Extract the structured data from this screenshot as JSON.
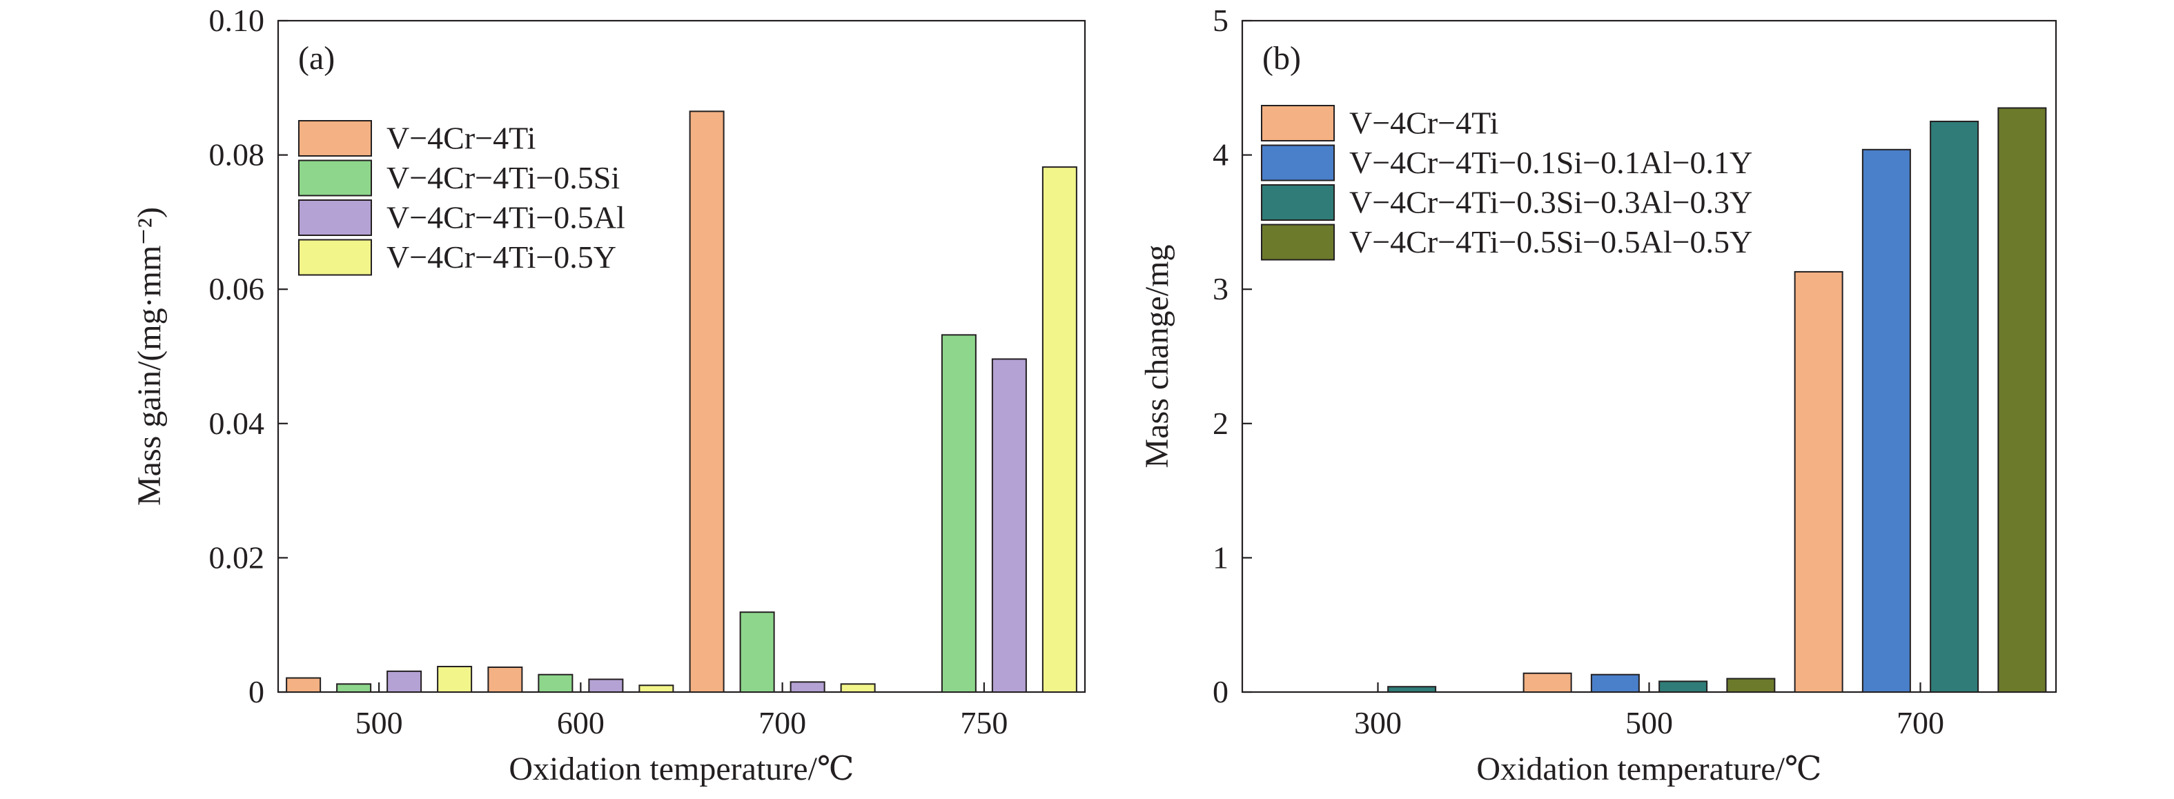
{
  "chart_data": [
    {
      "type": "bar",
      "panel_label": "(a)",
      "xlabel": "Oxidation temperature/℃",
      "ylabel": "Mass gain/(mg·mm⁻²)",
      "ylim": [
        0,
        0.1
      ],
      "yticks": [
        "0",
        "0.02",
        "0.04",
        "0.06",
        "0.08",
        "0.10"
      ],
      "categories": [
        "500",
        "600",
        "700",
        "750"
      ],
      "grid": false,
      "legend_position": "top-left",
      "series": [
        {
          "name": "V−4Cr−4Ti",
          "color": "#f4b183",
          "values": [
            0.0021,
            0.0037,
            0.0865,
            null
          ]
        },
        {
          "name": "V−4Cr−4Ti−0.5Si",
          "color": "#8ed68c",
          "values": [
            0.0012,
            0.0026,
            0.0119,
            0.0532
          ]
        },
        {
          "name": "V−4Cr−4Ti−0.5Al",
          "color": "#b4a2d4",
          "values": [
            0.0031,
            0.0019,
            0.0015,
            0.0496
          ]
        },
        {
          "name": "V−4Cr−4Ti−0.5Y",
          "color": "#f2f58a",
          "values": [
            0.0038,
            0.001,
            0.0012,
            0.0782
          ]
        }
      ]
    },
    {
      "type": "bar",
      "panel_label": "(b)",
      "xlabel": "Oxidation temperature/℃",
      "ylabel": "Mass change/mg",
      "ylim": [
        0,
        5
      ],
      "yticks": [
        "0",
        "1",
        "2",
        "3",
        "4",
        "5"
      ],
      "categories": [
        "300",
        "500",
        "700"
      ],
      "grid": false,
      "legend_position": "top-left",
      "series": [
        {
          "name": "V−4Cr−4Ti",
          "color": "#f4b183",
          "values": [
            null,
            0.14,
            3.13
          ]
        },
        {
          "name": "V−4Cr−4Ti−0.1Si−0.1Al−0.1Y",
          "color": "#4a7fc9",
          "values": [
            null,
            0.13,
            4.04
          ]
        },
        {
          "name": "V−4Cr−4Ti−0.3Si−0.3Al−0.3Y",
          "color": "#2f7c78",
          "values": [
            0.04,
            0.08,
            4.25
          ]
        },
        {
          "name": "V−4Cr−4Ti−0.5Si−0.5Al−0.5Y",
          "color": "#6c7a2c",
          "values": [
            null,
            0.1,
            4.35
          ]
        }
      ]
    }
  ]
}
